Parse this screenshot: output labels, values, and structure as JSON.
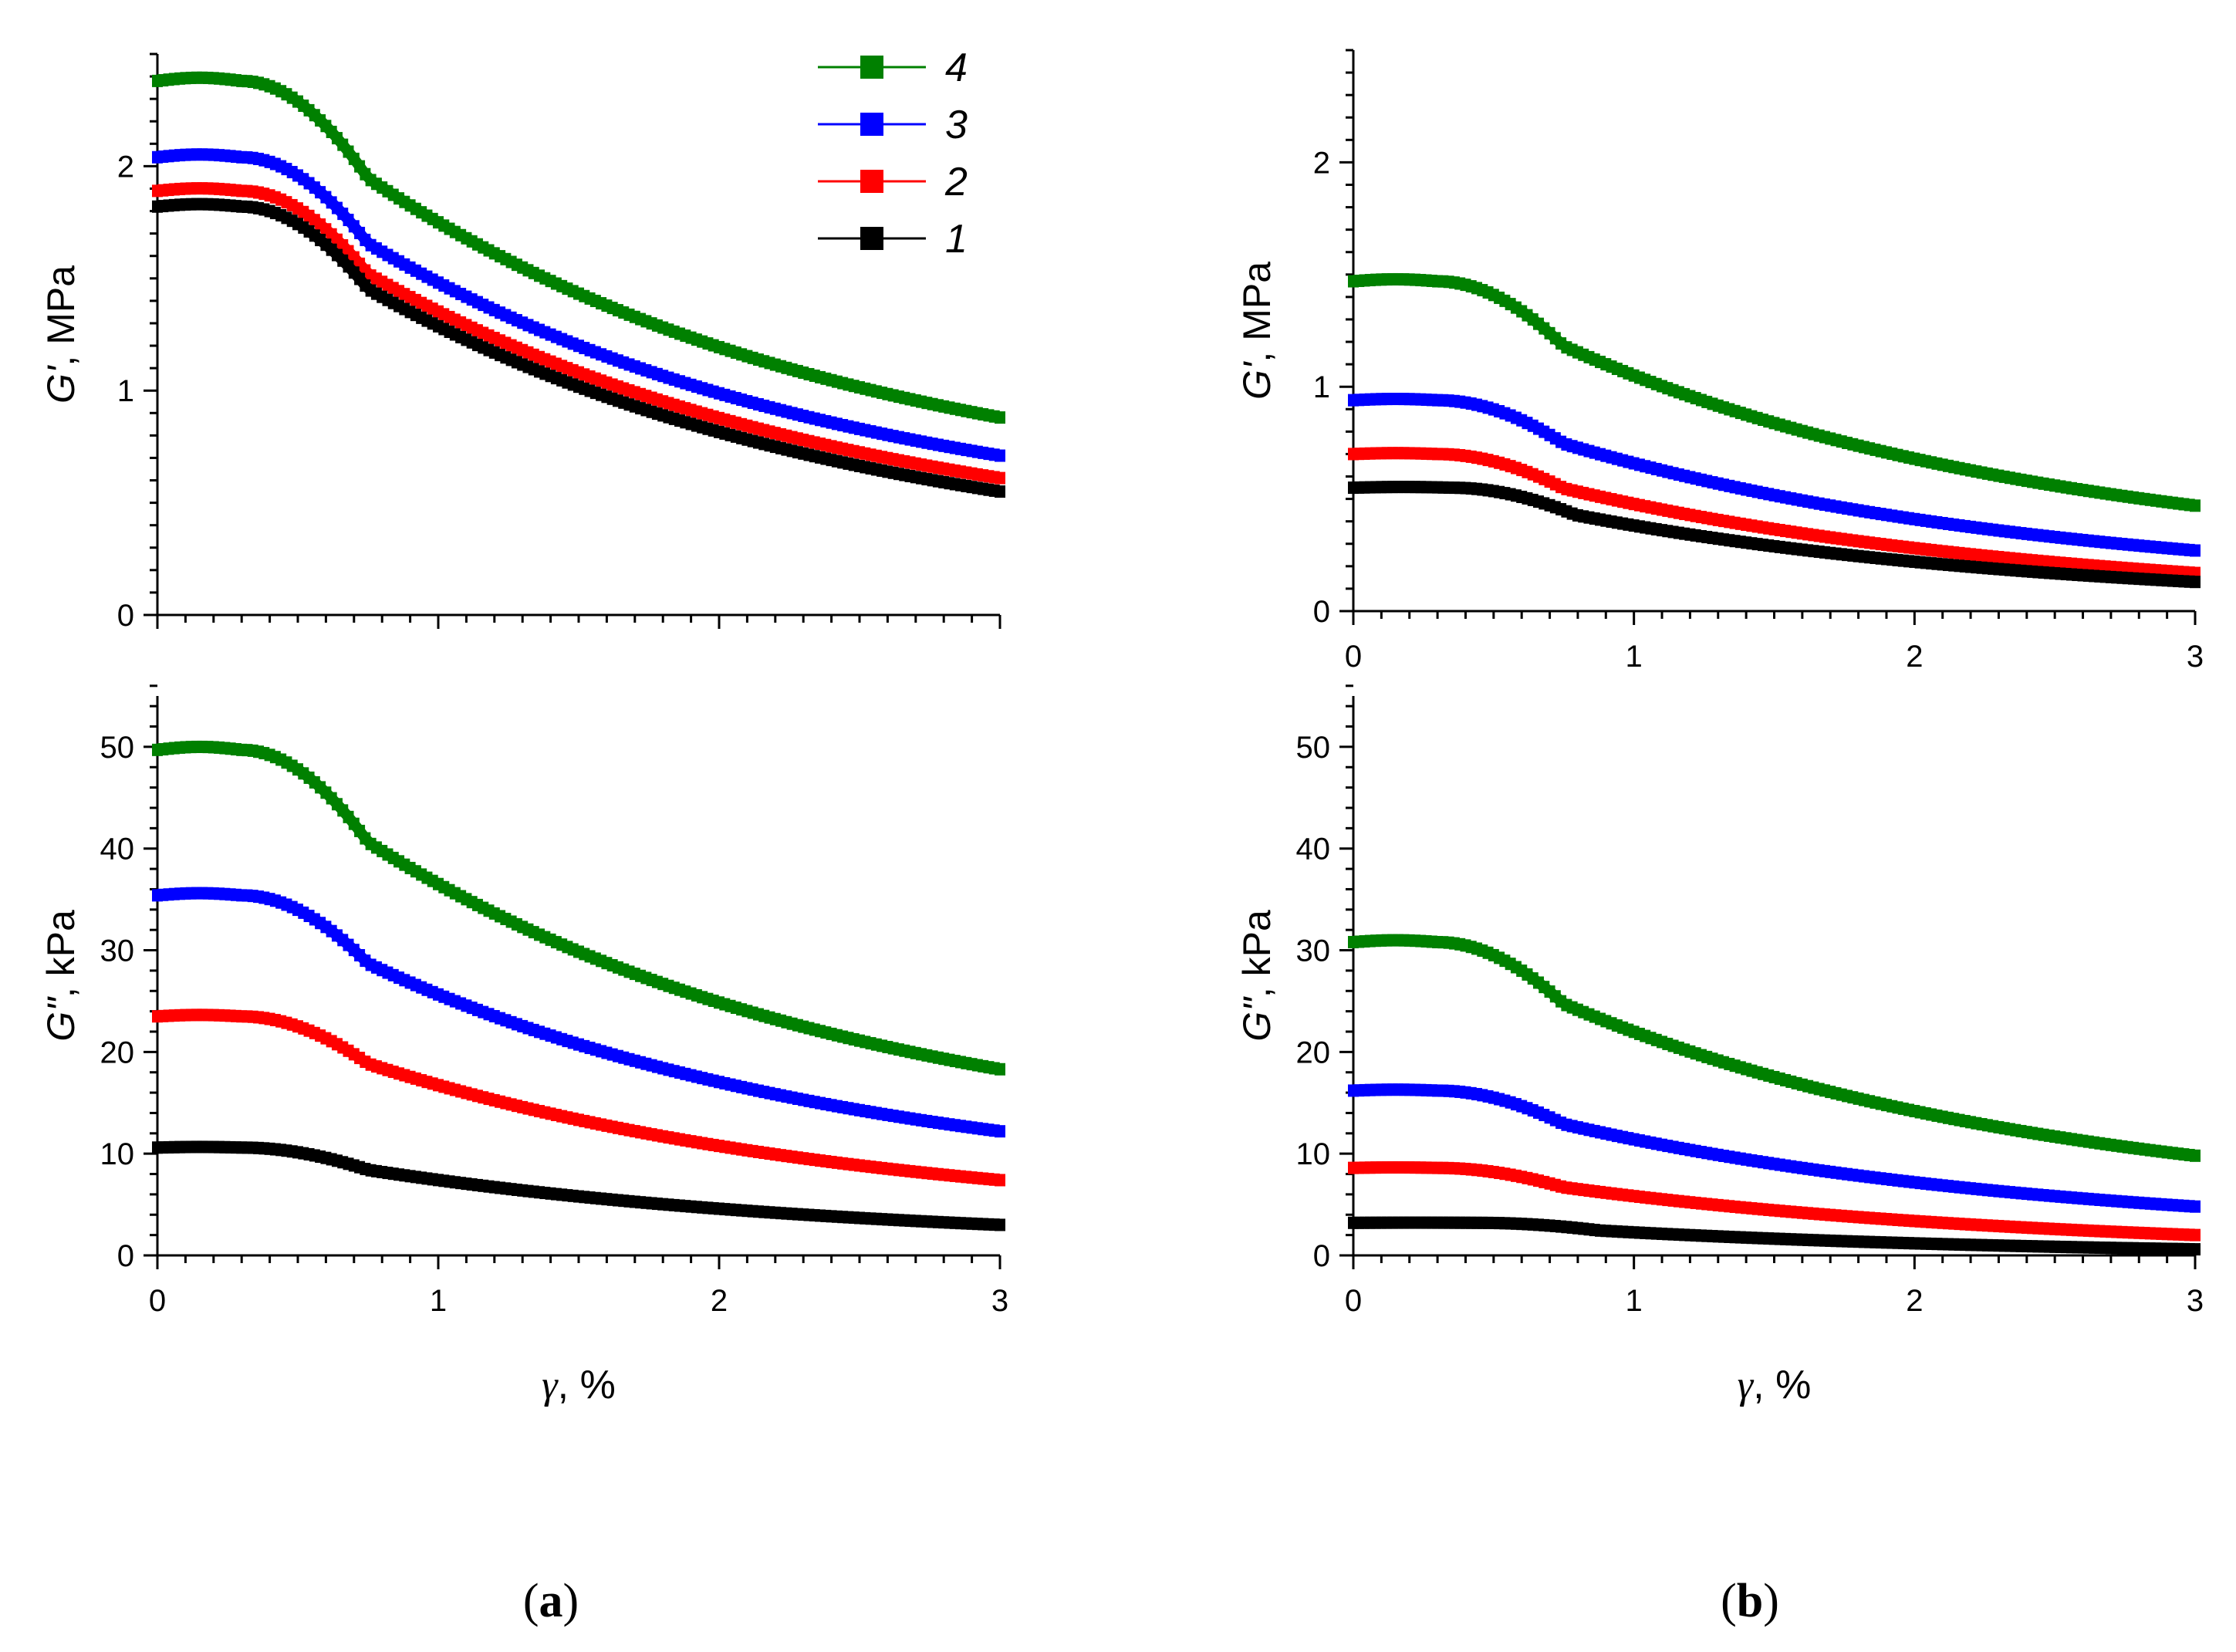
{
  "colors": {
    "1": "#000000",
    "2": "#ff0000",
    "3": "#0000ff",
    "4": "#008000"
  },
  "legend": {
    "entries": [
      {
        "label": "4",
        "series": "4"
      },
      {
        "label": "3",
        "series": "3"
      },
      {
        "label": "2",
        "series": "2"
      },
      {
        "label": "1",
        "series": "1"
      }
    ]
  },
  "panel_labels": {
    "a_open": "(",
    "a": "a",
    "a_close": ")",
    "b_open": "(",
    "b": "b",
    "b_close": ")"
  },
  "chart_data": [
    {
      "id": "a-top",
      "type": "line",
      "panel": "a",
      "ylabel": "G', MPa",
      "xlabel": "",
      "xlim": [
        0,
        3
      ],
      "ylim": [
        0,
        2.5
      ],
      "xticks": [
        0,
        1,
        2,
        3
      ],
      "xticklabels": [],
      "yticks": [
        0,
        1,
        2
      ],
      "yticklabels": [
        "0",
        "1",
        "2"
      ],
      "series": [
        {
          "name": "4",
          "plateau": 2.38,
          "knee": 0.3,
          "end": 0.88
        },
        {
          "name": "3",
          "plateau": 2.04,
          "knee": 0.3,
          "end": 0.71
        },
        {
          "name": "2",
          "plateau": 1.89,
          "knee": 0.3,
          "end": 0.61
        },
        {
          "name": "1",
          "plateau": 1.82,
          "knee": 0.3,
          "end": 0.55
        }
      ]
    },
    {
      "id": "b-top",
      "type": "line",
      "panel": "b",
      "ylabel": "G', MPa",
      "xlabel": "",
      "xlim": [
        0,
        3
      ],
      "ylim": [
        0,
        2.5
      ],
      "xticks": [
        0,
        1,
        2,
        3
      ],
      "xticklabels": [
        "0",
        "1",
        "2",
        "3"
      ],
      "yticks": [
        0,
        1,
        2
      ],
      "yticklabels": [
        "0",
        "1",
        "2"
      ],
      "series": [
        {
          "name": "4",
          "plateau": 1.47,
          "knee": 0.3,
          "end": 0.47
        },
        {
          "name": "3",
          "plateau": 0.94,
          "knee": 0.3,
          "end": 0.27
        },
        {
          "name": "2",
          "plateau": 0.7,
          "knee": 0.3,
          "end": 0.17
        },
        {
          "name": "1",
          "plateau": 0.55,
          "knee": 0.35,
          "end": 0.13
        }
      ]
    },
    {
      "id": "a-bottom",
      "type": "line",
      "panel": "a",
      "ylabel": "G\", kPa",
      "xlabel": "γ, %",
      "xlim": [
        0,
        3
      ],
      "ylim": [
        0,
        55
      ],
      "xticks": [
        0,
        1,
        2,
        3
      ],
      "xticklabels": [
        "0",
        "1",
        "2",
        "3"
      ],
      "yticks": [
        0,
        10,
        20,
        30,
        40,
        50
      ],
      "yticklabels": [
        "0",
        "10",
        "20",
        "30",
        "40",
        "50"
      ],
      "series": [
        {
          "name": "4",
          "plateau": 49.7,
          "knee": 0.3,
          "end": 18.3
        },
        {
          "name": "3",
          "plateau": 35.4,
          "knee": 0.3,
          "end": 12.2
        },
        {
          "name": "2",
          "plateau": 23.5,
          "knee": 0.3,
          "end": 7.4
        },
        {
          "name": "1",
          "plateau": 10.6,
          "knee": 0.3,
          "end": 3.0
        }
      ]
    },
    {
      "id": "b-bottom",
      "type": "line",
      "panel": "b",
      "ylabel": "G\", kPa",
      "xlabel": "γ, %",
      "xlim": [
        0,
        3
      ],
      "ylim": [
        0,
        55
      ],
      "xticks": [
        0,
        1,
        2,
        3
      ],
      "xticklabels": [
        "0",
        "1",
        "2",
        "3"
      ],
      "yticks": [
        0,
        10,
        20,
        30,
        40,
        50
      ],
      "yticklabels": [
        "0",
        "10",
        "20",
        "30",
        "40",
        "50"
      ],
      "series": [
        {
          "name": "4",
          "plateau": 30.8,
          "knee": 0.3,
          "end": 9.8
        },
        {
          "name": "3",
          "plateau": 16.2,
          "knee": 0.3,
          "end": 4.8
        },
        {
          "name": "2",
          "plateau": 8.6,
          "knee": 0.3,
          "end": 2.0
        },
        {
          "name": "1",
          "plateau": 3.2,
          "knee": 0.45,
          "end": 0.6
        }
      ]
    }
  ]
}
